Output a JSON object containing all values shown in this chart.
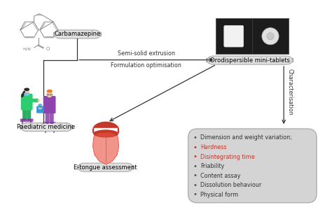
{
  "bg_color": "#ffffff",
  "fig_width": 4.74,
  "fig_height": 3.03,
  "dpi": 100,
  "carbamazepine_label": "Carbamazepine",
  "paediatric_label": "Paediatric medicine",
  "arrow1_label_top": "Semi-solid extrusion",
  "arrow1_label_bot": "Formulation optimisation",
  "orodispersible_label": "Orodispersible mini-tablets",
  "characterisation_label": "Characterisation",
  "etongue_label": "E-tongue assessment",
  "bullet_items": [
    [
      "#333333",
      "Dimension and weight variation;"
    ],
    [
      "#c0392b",
      "Hardness"
    ],
    [
      "#c0392b",
      "Disintegrating time"
    ],
    [
      "#333333",
      "Friability"
    ],
    [
      "#333333",
      "Content assay"
    ],
    [
      "#333333",
      "Dissolution behaviour"
    ],
    [
      "#333333",
      "Physical form"
    ]
  ],
  "box_bg": "#d4d4d4",
  "box_label_bg": "#e0e0e0",
  "label_fontsize": 6.0,
  "bullet_fontsize": 5.8,
  "arrow_color": "#333333",
  "annotation_fontsize": 5.8,
  "struct_color": "#888888",
  "xlim": [
    0,
    10
  ],
  "ylim": [
    0,
    6.4
  ]
}
